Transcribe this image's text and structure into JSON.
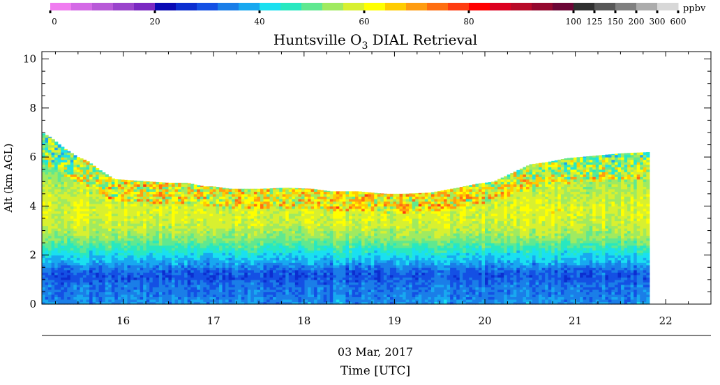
{
  "chart_data": {
    "type": "heatmap",
    "title": "Huntsville O",
    "title_subscript": "3",
    "title_suffix": " DIAL Retrieval",
    "ylabel": "Alt (km AGL)",
    "xlabel": "Time [UTC]",
    "date_label": "03 Mar, 2017",
    "xlim": [
      15.1,
      22.5
    ],
    "ylim": [
      0,
      10.3
    ],
    "x_ticks": [
      "16",
      "17",
      "18",
      "19",
      "20",
      "21",
      "22"
    ],
    "y_ticks": [
      "0",
      "2",
      "4",
      "6",
      "8",
      "10"
    ],
    "colorbar": {
      "units": "ppbv",
      "labels": [
        "0",
        "20",
        "40",
        "60",
        "80",
        "100",
        "125",
        "150",
        "200",
        "300",
        "600"
      ],
      "colors": [
        "#f07cf0",
        "#d46ae6",
        "#b85ad8",
        "#9a44cc",
        "#7a28c2",
        "#0a0ab4",
        "#0c2ed0",
        "#1450e4",
        "#1a7ee8",
        "#18a8f0",
        "#1ae0f0",
        "#28e8c0",
        "#60e890",
        "#a0ea60",
        "#d8f030",
        "#ffff00",
        "#ffcc00",
        "#ff9c10",
        "#ff6e10",
        "#ff3c10",
        "#ff0000",
        "#dc0020",
        "#b80a28",
        "#94082e",
        "#6c0636",
        "#303030",
        "#585858",
        "#808080",
        "#acacac",
        "#d8d8d8"
      ]
    },
    "data_extent": {
      "time_start": 15.1,
      "time_end": 21.8
    },
    "top_altitude_km": [
      [
        15.1,
        7.0
      ],
      [
        15.2,
        6.8
      ],
      [
        15.35,
        6.35
      ],
      [
        15.5,
        6.0
      ],
      [
        15.6,
        5.85
      ],
      [
        15.75,
        5.45
      ],
      [
        15.9,
        5.1
      ],
      [
        16.1,
        5.05
      ],
      [
        16.3,
        5.0
      ],
      [
        16.5,
        4.95
      ],
      [
        16.7,
        4.95
      ],
      [
        16.9,
        4.8
      ],
      [
        17.0,
        4.8
      ],
      [
        17.2,
        4.7
      ],
      [
        17.5,
        4.7
      ],
      [
        17.8,
        4.75
      ],
      [
        18.1,
        4.7
      ],
      [
        18.3,
        4.6
      ],
      [
        18.6,
        4.6
      ],
      [
        18.9,
        4.5
      ],
      [
        19.1,
        4.5
      ],
      [
        19.4,
        4.55
      ],
      [
        19.7,
        4.75
      ],
      [
        19.9,
        4.9
      ],
      [
        20.1,
        5.0
      ],
      [
        20.3,
        5.35
      ],
      [
        20.5,
        5.7
      ],
      [
        20.7,
        5.8
      ],
      [
        20.9,
        5.95
      ],
      [
        21.2,
        6.05
      ],
      [
        21.5,
        6.15
      ],
      [
        21.8,
        6.2
      ]
    ],
    "vertical_profile_ppbv": [
      [
        0.0,
        36
      ],
      [
        0.4,
        34
      ],
      [
        0.8,
        33
      ],
      [
        1.1,
        30
      ],
      [
        1.4,
        32
      ],
      [
        1.7,
        38
      ],
      [
        2.0,
        42
      ],
      [
        2.3,
        47
      ],
      [
        2.7,
        53
      ],
      [
        3.2,
        57
      ],
      [
        3.8,
        59
      ],
      [
        4.4,
        57
      ],
      [
        5.0,
        55
      ],
      [
        5.6,
        50
      ],
      [
        6.2,
        46
      ],
      [
        7.0,
        44
      ]
    ]
  }
}
